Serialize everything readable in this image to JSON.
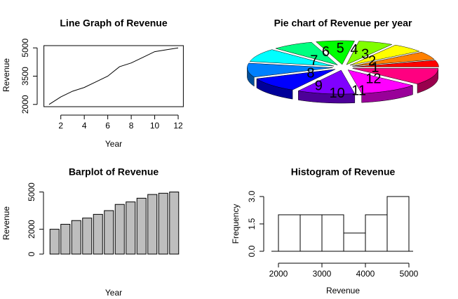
{
  "chart_data": [
    {
      "type": "line",
      "title": "Line Graph of Revenue",
      "xlabel": "Year",
      "ylabel": "Revenue",
      "x": [
        1,
        2,
        3,
        4,
        5,
        6,
        7,
        8,
        9,
        10,
        11,
        12
      ],
      "values": [
        2000,
        2400,
        2700,
        2900,
        3200,
        3500,
        4000,
        4200,
        4500,
        4800,
        4900,
        5000
      ],
      "color": "#000000",
      "xlim": [
        0.56,
        12.44
      ],
      "xticks": [
        2,
        4,
        6,
        8,
        10,
        12
      ],
      "ylim": [
        1880,
        5120
      ],
      "yticks": [
        2000,
        3500,
        5000
      ]
    },
    {
      "type": "pie",
      "title": "Pie chart of Revenue per year",
      "categories": [
        "1",
        "2",
        "3",
        "4",
        "5",
        "6",
        "7",
        "8",
        "9",
        "10",
        "11",
        "12"
      ],
      "values": [
        2000,
        2400,
        2700,
        2900,
        3200,
        3500,
        4000,
        4200,
        4500,
        4800,
        4900,
        5000
      ],
      "colors": [
        "#FF0000",
        "#FF8000",
        "#FFFF00",
        "#80FF00",
        "#00FF00",
        "#00FF80",
        "#00FFFF",
        "#0080FF",
        "#0000FF",
        "#8000FF",
        "#FF00FF",
        "#FF0080"
      ]
    },
    {
      "type": "bar",
      "title": "Barplot of Revenue",
      "xlabel": "Year",
      "ylabel": "Revenue",
      "values": [
        2000,
        2400,
        2700,
        2900,
        3200,
        3500,
        4000,
        4200,
        4500,
        4800,
        4900,
        5000
      ],
      "color": "#bebebe",
      "ylim": [
        0,
        5200
      ],
      "yticks": [
        0,
        2000,
        5000
      ]
    },
    {
      "type": "histogram",
      "title": "Histogram of Revenue",
      "xlabel": "Revenue",
      "ylabel": "Frequency",
      "bins": [
        2000,
        2500,
        3000,
        3500,
        4000,
        4500,
        5000
      ],
      "values": [
        2,
        2,
        2,
        1,
        2,
        3
      ],
      "color": "#ffffff",
      "xlim": [
        2000,
        5000
      ],
      "xticks": [
        2000,
        3000,
        4000,
        5000
      ],
      "ylim": [
        0,
        3
      ],
      "yticks": [
        {
          "value": 0,
          "label": "0.0"
        },
        1.5,
        {
          "value": 3,
          "label": "3.0"
        }
      ]
    }
  ]
}
